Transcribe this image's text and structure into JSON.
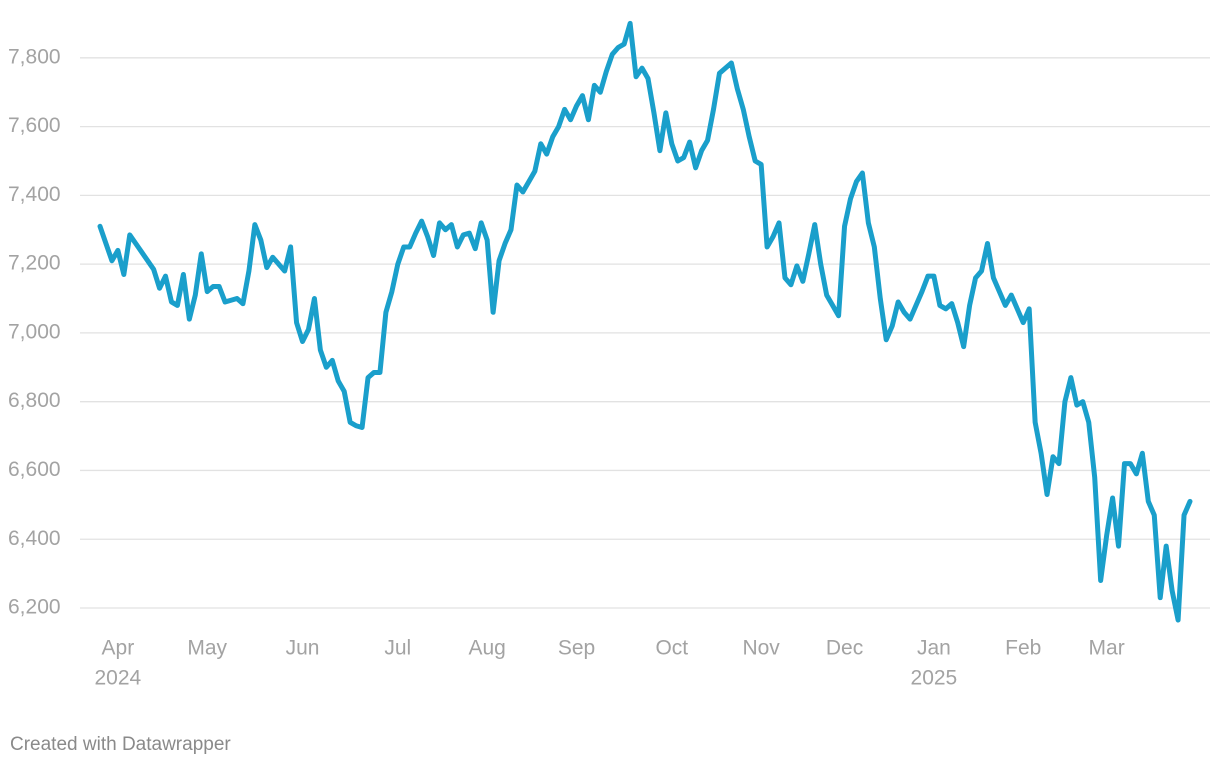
{
  "chart_data": {
    "type": "line",
    "credit": "Created with Datawrapper",
    "color": "#1a9fcb",
    "grid": true,
    "ylim": [
      6136,
      7910
    ],
    "yticks": [
      {
        "value": 6200,
        "label": "6,200"
      },
      {
        "value": 6400,
        "label": "6,400"
      },
      {
        "value": 6600,
        "label": "6,600"
      },
      {
        "value": 6800,
        "label": "6,800"
      },
      {
        "value": 7000,
        "label": "7,000"
      },
      {
        "value": 7200,
        "label": "7,200"
      },
      {
        "value": 7400,
        "label": "7,400"
      },
      {
        "value": 7600,
        "label": "7,600"
      },
      {
        "value": 7800,
        "label": "7,800"
      }
    ],
    "categories": [
      null,
      null,
      null,
      "Apr",
      null,
      null,
      null,
      null,
      null,
      null,
      null,
      null,
      null,
      null,
      null,
      null,
      null,
      null,
      "May",
      null,
      null,
      null,
      null,
      null,
      null,
      null,
      null,
      null,
      null,
      null,
      null,
      null,
      null,
      null,
      "Jun",
      null,
      null,
      null,
      null,
      null,
      null,
      null,
      null,
      null,
      null,
      null,
      null,
      null,
      null,
      null,
      "Jul",
      null,
      null,
      null,
      null,
      null,
      null,
      null,
      null,
      null,
      null,
      null,
      null,
      null,
      null,
      "Aug",
      null,
      null,
      null,
      null,
      null,
      null,
      null,
      null,
      null,
      null,
      null,
      null,
      null,
      null,
      "Sep",
      null,
      null,
      null,
      null,
      null,
      null,
      null,
      null,
      null,
      null,
      null,
      null,
      null,
      null,
      null,
      "Oct",
      null,
      null,
      null,
      null,
      null,
      null,
      null,
      null,
      null,
      null,
      null,
      null,
      null,
      null,
      "Nov",
      null,
      null,
      null,
      null,
      null,
      null,
      null,
      null,
      null,
      null,
      null,
      null,
      null,
      "Dec",
      null,
      null,
      null,
      null,
      null,
      null,
      null,
      null,
      null,
      null,
      null,
      null,
      null,
      null,
      "Jan",
      null,
      null,
      null,
      null,
      null,
      null,
      null,
      null,
      null,
      null,
      null,
      null,
      null,
      null,
      "Feb",
      null,
      null,
      null,
      null,
      null,
      null,
      null,
      null,
      null,
      null,
      null,
      null,
      null,
      "Mar",
      null,
      null,
      null,
      null,
      null,
      null,
      null,
      null,
      null,
      null,
      null,
      null,
      null,
      null
    ],
    "category_sublabels": [
      null,
      null,
      null,
      "2024",
      null,
      null,
      null,
      null,
      null,
      null,
      null,
      null,
      null,
      null,
      null,
      null,
      null,
      null,
      null,
      null,
      null,
      null,
      null,
      null,
      null,
      null,
      null,
      null,
      null,
      null,
      null,
      null,
      null,
      null,
      null,
      null,
      null,
      null,
      null,
      null,
      null,
      null,
      null,
      null,
      null,
      null,
      null,
      null,
      null,
      null,
      null,
      null,
      null,
      null,
      null,
      null,
      null,
      null,
      null,
      null,
      null,
      null,
      null,
      null,
      null,
      null,
      null,
      null,
      null,
      null,
      null,
      null,
      null,
      null,
      null,
      null,
      null,
      null,
      null,
      null,
      null,
      null,
      null,
      null,
      null,
      null,
      null,
      null,
      null,
      null,
      null,
      null,
      null,
      null,
      null,
      null,
      null,
      null,
      null,
      null,
      null,
      null,
      null,
      null,
      null,
      null,
      null,
      null,
      null,
      null,
      null,
      null,
      null,
      null,
      null,
      null,
      null,
      null,
      null,
      null,
      null,
      null,
      null,
      null,
      null,
      null,
      null,
      null,
      null,
      null,
      null,
      null,
      null,
      null,
      null,
      null,
      null,
      null,
      null,
      null,
      "2025",
      null,
      null,
      null,
      null,
      null,
      null,
      null,
      null,
      null,
      null,
      null,
      null,
      null,
      null,
      null,
      null,
      null,
      null,
      null,
      null,
      null,
      null,
      null,
      null,
      null,
      null,
      null,
      null,
      null,
      null,
      null,
      null,
      null,
      null,
      null,
      null,
      null,
      null,
      null,
      null,
      null,
      null,
      null
    ],
    "values": [
      7310,
      7260,
      7210,
      7240,
      7170,
      7285,
      7260,
      7235,
      7210,
      7185,
      7130,
      7165,
      7090,
      7080,
      7170,
      7040,
      7110,
      7230,
      7120,
      7135,
      7135,
      7090,
      7095,
      7100,
      7085,
      7180,
      7315,
      7270,
      7190,
      7220,
      7200,
      7180,
      7250,
      7030,
      6975,
      7010,
      7100,
      6950,
      6900,
      6920,
      6860,
      6830,
      6740,
      6730,
      6725,
      6870,
      6885,
      6885,
      7060,
      7120,
      7200,
      7250,
      7250,
      7290,
      7325,
      7280,
      7225,
      7320,
      7300,
      7315,
      7250,
      7285,
      7290,
      7245,
      7320,
      7270,
      7060,
      7210,
      7260,
      7300,
      7430,
      7410,
      7440,
      7470,
      7550,
      7520,
      7570,
      7600,
      7650,
      7620,
      7660,
      7690,
      7620,
      7720,
      7700,
      7760,
      7810,
      7830,
      7840,
      7900,
      7745,
      7770,
      7740,
      7640,
      7530,
      7640,
      7550,
      7500,
      7510,
      7555,
      7480,
      7530,
      7560,
      7650,
      7755,
      7770,
      7785,
      7710,
      7650,
      7570,
      7500,
      7490,
      7250,
      7280,
      7320,
      7160,
      7140,
      7195,
      7150,
      7230,
      7315,
      7200,
      7110,
      7080,
      7050,
      7310,
      7390,
      7440,
      7465,
      7320,
      7250,
      7100,
      6980,
      7020,
      7090,
      7060,
      7040,
      7080,
      7120,
      7165,
      7165,
      7080,
      7070,
      7085,
      7030,
      6960,
      7080,
      7160,
      7180,
      7260,
      7160,
      7120,
      7080,
      7110,
      7070,
      7030,
      7070,
      6740,
      6650,
      6530,
      6640,
      6620,
      6800,
      6870,
      6790,
      6800,
      6740,
      6580,
      6280,
      6410,
      6520,
      6380,
      6620,
      6620,
      6590,
      6650,
      6510,
      6470,
      6230,
      6380,
      6250,
      6165,
      6470,
      6510
    ]
  }
}
